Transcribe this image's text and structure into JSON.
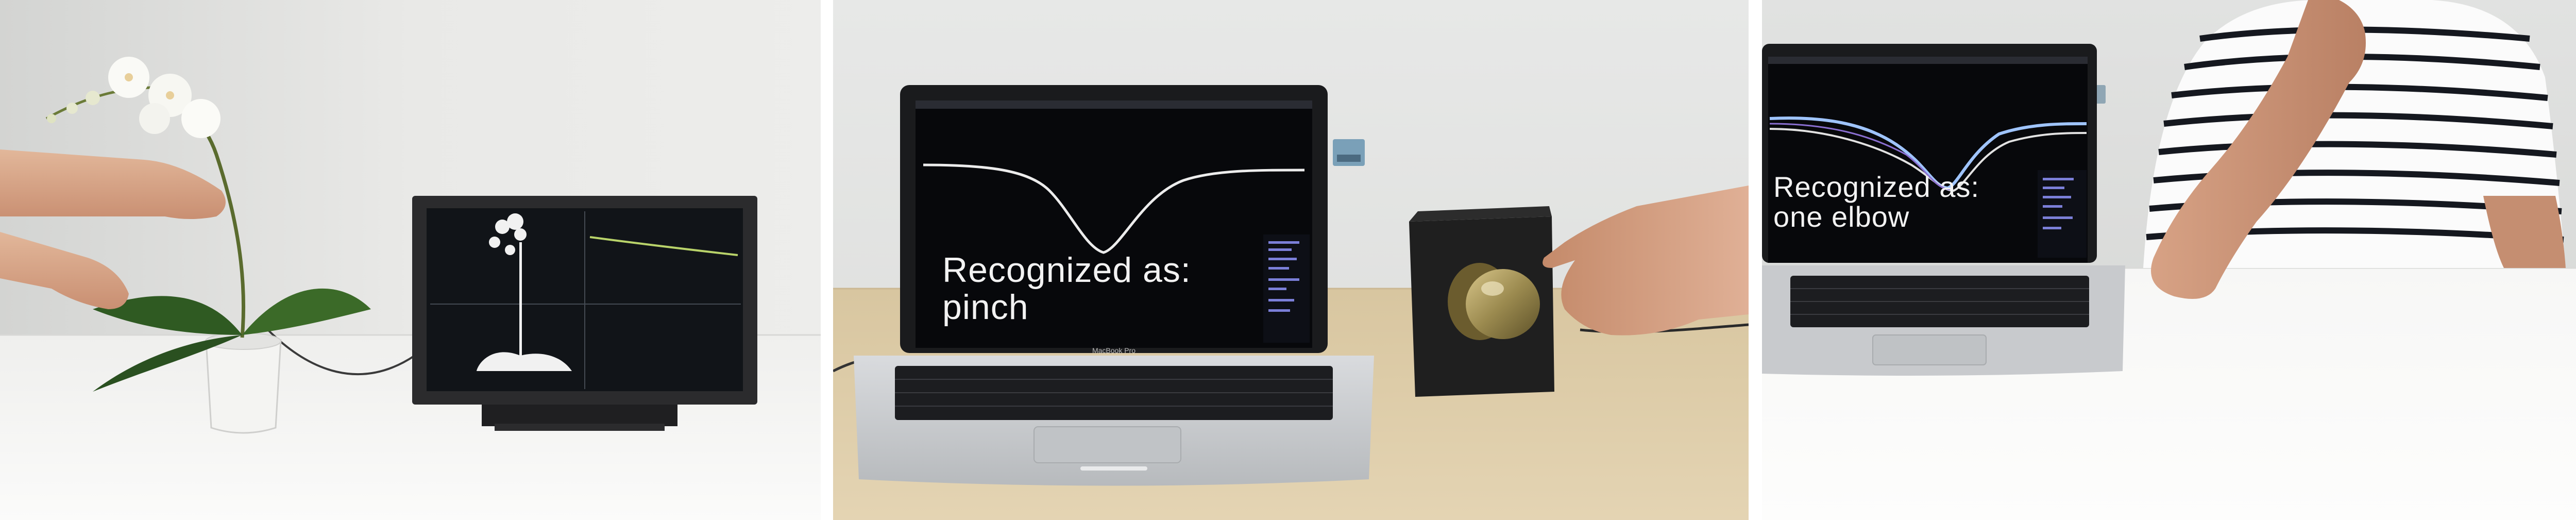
{
  "panels": [
    {
      "name": "plant-touch-scene"
    },
    {
      "name": "doorknob-pinch-scene",
      "recognition_text": "Recognized as:\npinch",
      "recognition_line1": "Recognized as:",
      "recognition_line2": "pinch",
      "laptop_brand": "MacBook Pro"
    },
    {
      "name": "table-elbow-scene",
      "recognition_line1": "Recognized as:",
      "recognition_line2": "one elbow"
    }
  ],
  "colors": {
    "wall": "#e6e6e4",
    "table_white": "#f5f5f3",
    "table_wood": "#d9c7a0",
    "screen_bg": "#0b0d12",
    "curve": "#e8e8e8",
    "trace_green": "#b9d36a",
    "laptop_silver": "#c9cbce"
  }
}
